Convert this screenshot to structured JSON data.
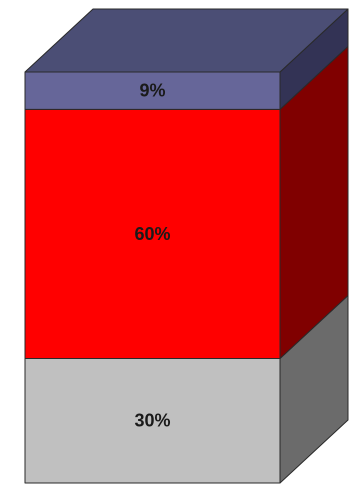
{
  "chart_data": {
    "type": "bar",
    "subtype": "stacked-3d-column",
    "categories": [
      ""
    ],
    "series": [
      {
        "values": [
          30
        ],
        "label": "30%",
        "color": "#c0c0c0",
        "side_color": "#6b6b6b",
        "top_color": "#dcdcdc"
      },
      {
        "values": [
          60
        ],
        "label": "60%",
        "color": "#ff0000",
        "side_color": "#800000",
        "top_color": "#ff5a5a"
      },
      {
        "values": [
          9
        ],
        "label": "9%",
        "color": "#666699",
        "side_color": "#333355",
        "top_color": "#4b4e75"
      }
    ],
    "ylim": [
      0,
      99
    ],
    "grid": false,
    "legend": "none"
  }
}
